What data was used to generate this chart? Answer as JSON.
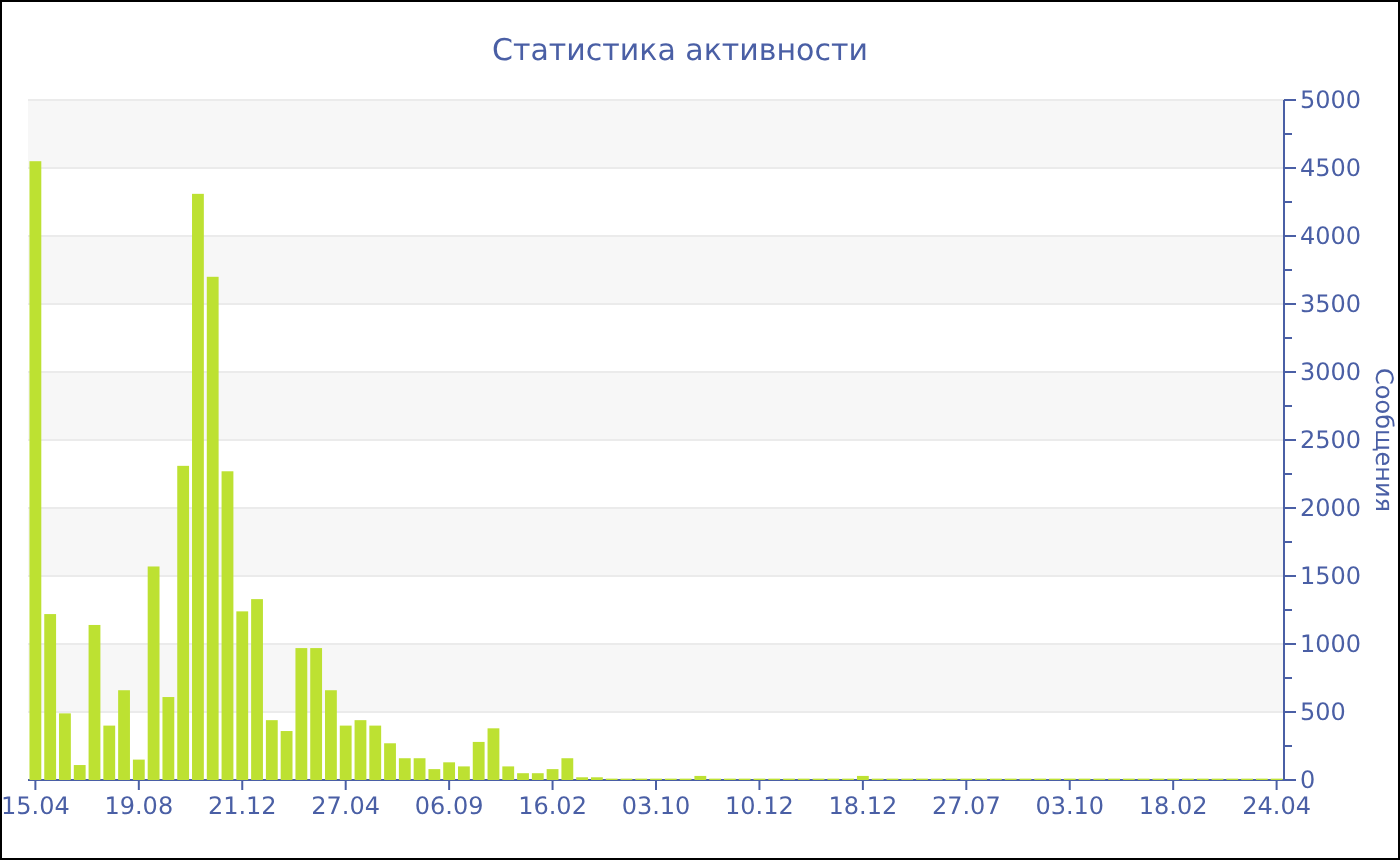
{
  "chart_data": {
    "type": "bar",
    "title": "Статистика активности",
    "ylabel": "Сообщения",
    "categories": [
      "15.04",
      null,
      null,
      null,
      null,
      null,
      null,
      "19.08",
      null,
      null,
      null,
      null,
      null,
      null,
      "21.12",
      null,
      null,
      null,
      null,
      null,
      null,
      "27.04",
      null,
      null,
      null,
      null,
      null,
      null,
      "06.09",
      null,
      null,
      null,
      null,
      null,
      null,
      "16.02",
      null,
      null,
      null,
      null,
      null,
      null,
      "03.10",
      null,
      null,
      null,
      null,
      null,
      null,
      "10.12",
      null,
      null,
      null,
      null,
      null,
      null,
      "18.12",
      null,
      null,
      null,
      null,
      null,
      null,
      "27.07",
      null,
      null,
      null,
      null,
      null,
      null,
      "03.10",
      null,
      null,
      null,
      null,
      null,
      null,
      "18.02",
      null,
      null,
      null,
      null,
      null,
      null,
      "24.04"
    ],
    "values": [
      4550,
      1220,
      490,
      110,
      1140,
      400,
      660,
      150,
      1570,
      610,
      2310,
      4310,
      3700,
      2270,
      1240,
      1330,
      440,
      360,
      970,
      970,
      660,
      400,
      440,
      400,
      270,
      160,
      160,
      80,
      130,
      100,
      280,
      380,
      100,
      50,
      50,
      80,
      160,
      20,
      20,
      10,
      10,
      10,
      10,
      10,
      10,
      30,
      10,
      10,
      10,
      10,
      10,
      10,
      10,
      10,
      10,
      10,
      30,
      10,
      10,
      10,
      10,
      10,
      10,
      10,
      10,
      10,
      10,
      10,
      10,
      10,
      10,
      10,
      10,
      10,
      10,
      10,
      10,
      10,
      10,
      10,
      10,
      10,
      10,
      10,
      10
    ],
    "color": "#bde132",
    "ylim": [
      0,
      5000
    ],
    "yticks": [
      0,
      {
        "value": 250,
        "label": null
      },
      500,
      {
        "value": 750,
        "label": null
      },
      1000,
      {
        "value": 1250,
        "label": null
      },
      1500,
      {
        "value": 1750,
        "label": null
      },
      2000,
      {
        "value": 2250,
        "label": null
      },
      2500,
      {
        "value": 2750,
        "label": null
      },
      3000,
      {
        "value": 3250,
        "label": null
      },
      3500,
      {
        "value": 3750,
        "label": null
      },
      4000,
      {
        "value": 4250,
        "label": null
      },
      4500,
      {
        "value": 4750,
        "label": null
      },
      5000
    ],
    "grid": "y"
  }
}
